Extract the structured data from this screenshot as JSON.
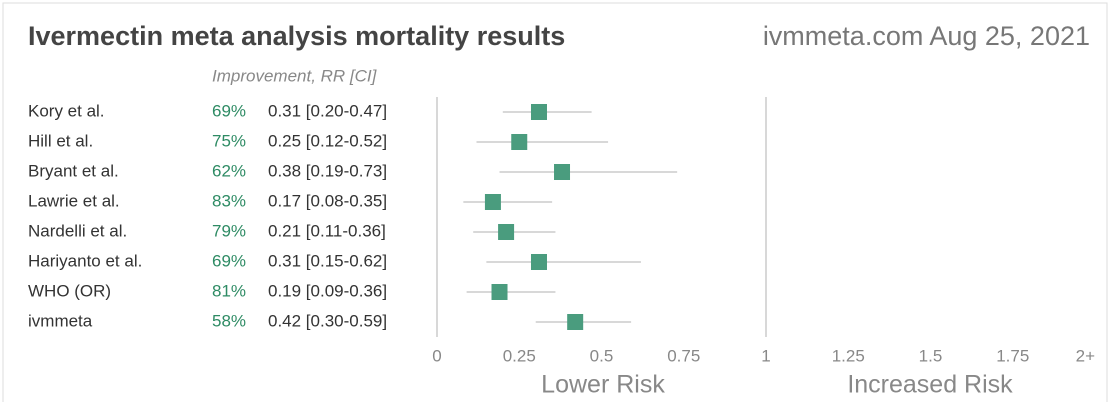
{
  "chart_data": {
    "type": "forest",
    "title": "Ivermectin meta analysis mortality results",
    "source": "ivmmeta.com Aug 25, 2021",
    "column_header": "Improvement, RR [CI]",
    "categories": [
      "Kory et al.",
      "Hill et al.",
      "Bryant et al.",
      "Lawrie et al.",
      "Nardelli et al.",
      "Hariyanto et al.",
      "WHO (OR)",
      "ivmmeta"
    ],
    "improvement": [
      "69%",
      "75%",
      "62%",
      "83%",
      "79%",
      "69%",
      "81%",
      "58%"
    ],
    "values": [
      0.31,
      0.25,
      0.38,
      0.17,
      0.21,
      0.31,
      0.19,
      0.42
    ],
    "value_labels": [
      "0.31 [0.20-0.47]",
      "0.25 [0.12-0.52]",
      "0.38 [0.19-0.73]",
      "0.17 [0.08-0.35]",
      "0.21 [0.11-0.36]",
      "0.31 [0.15-0.62]",
      "0.19 [0.09-0.36]",
      "0.42 [0.30-0.59]"
    ],
    "ci_low": [
      0.2,
      0.12,
      0.19,
      0.08,
      0.11,
      0.15,
      0.09,
      0.3
    ],
    "ci_high": [
      0.47,
      0.52,
      0.73,
      0.35,
      0.36,
      0.62,
      0.36,
      0.59
    ],
    "color": "#4a9c7e",
    "improvement_color": "#2e8b64",
    "xlim": [
      0,
      2
    ],
    "xticks": [
      0,
      0.25,
      0.5,
      0.75,
      1,
      1.25,
      1.5,
      1.75,
      {
        "value": 2,
        "label": "2+"
      }
    ],
    "reference_line": 1,
    "lower_label": "Lower Risk",
    "higher_label": "Increased Risk"
  }
}
